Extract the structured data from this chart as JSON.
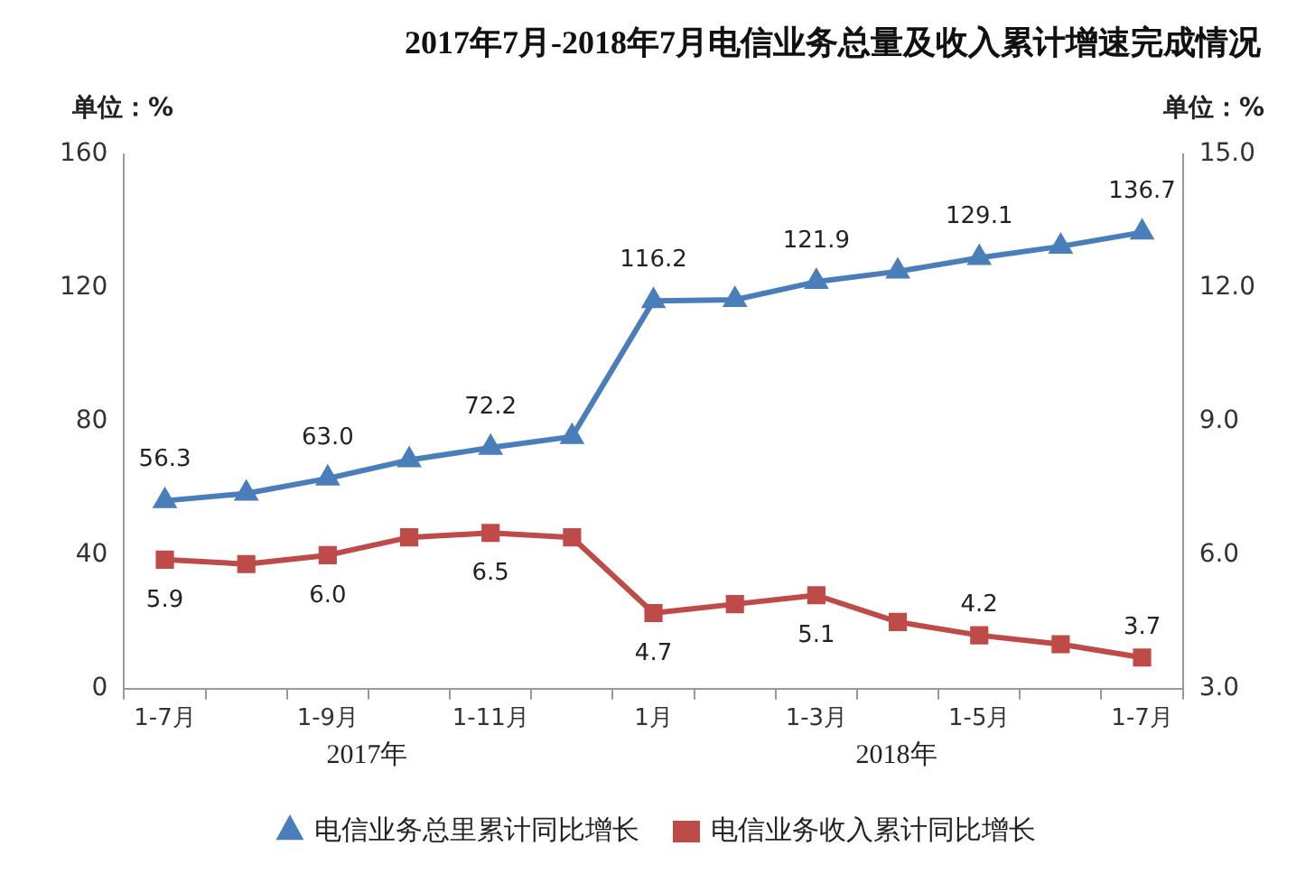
{
  "chart_data": {
    "type": "line",
    "title": "2017年7月-2018年7月电信业务总量及收入累计增速完成情况",
    "ylabel": "单位：%",
    "y2label": "单位：%",
    "categories": [
      "1-7月",
      null,
      "1-9月",
      null,
      "1-11月",
      null,
      "1月",
      null,
      "1-3月",
      null,
      "1-5月",
      null,
      "1-7月"
    ],
    "series": [
      {
        "name": "电信业务总里累计同比增长",
        "color": "#4a7ebb",
        "marker": "triangle",
        "values": [
          56.3,
          58.5,
          63.0,
          68.5,
          72.2,
          75.5,
          116.2,
          116.5,
          121.9,
          125.0,
          129.1,
          132.5,
          136.7
        ],
        "value_labels": [
          "56.3",
          null,
          "63.0",
          null,
          "72.2",
          null,
          "116.2",
          null,
          "121.9",
          null,
          "129.1",
          null,
          "136.7"
        ]
      },
      {
        "name": "电信业务收入累计同比增长",
        "color": "#be4b48",
        "marker": "square",
        "axis": "y2",
        "values": [
          5.9,
          5.8,
          6.0,
          6.4,
          6.5,
          6.4,
          4.7,
          4.9,
          5.1,
          4.5,
          4.2,
          4.0,
          3.7
        ],
        "value_labels": [
          "5.9",
          null,
          "6.0",
          null,
          "6.5",
          null,
          "4.7",
          null,
          "5.1",
          null,
          "4.2",
          null,
          "3.7"
        ]
      }
    ],
    "ylim": [
      0,
      160
    ],
    "yticks": [
      0,
      40,
      80,
      120,
      160
    ],
    "y2lim": [
      3.0,
      15.0
    ],
    "y2ticks": [
      {
        "value": 3,
        "label": "3.0"
      },
      {
        "value": 6,
        "label": "6.0"
      },
      {
        "value": 9,
        "label": "9.0"
      },
      {
        "value": 12,
        "label": "12.0"
      },
      {
        "value": 15,
        "label": "15.0"
      }
    ],
    "annotations": [
      "2017年",
      "2018年"
    ],
    "legend": "bottom",
    "grid": false,
    "line_style": "solid"
  }
}
